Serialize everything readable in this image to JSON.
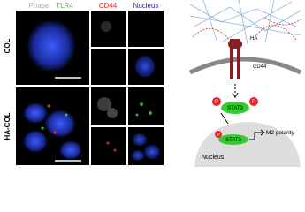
{
  "micrograph": {
    "columns": [
      "Phase",
      "TLR4",
      "CD44",
      "Nucleus"
    ],
    "rows": [
      "COL",
      "HA-COL"
    ]
  },
  "diagram": {
    "ligand": "HA",
    "receptor": "CD44",
    "protein": "STAT3",
    "phospho": "P",
    "nuclear_protein": "STAT3",
    "outcome": "M2 polarity",
    "compartment": "Nucleus"
  }
}
